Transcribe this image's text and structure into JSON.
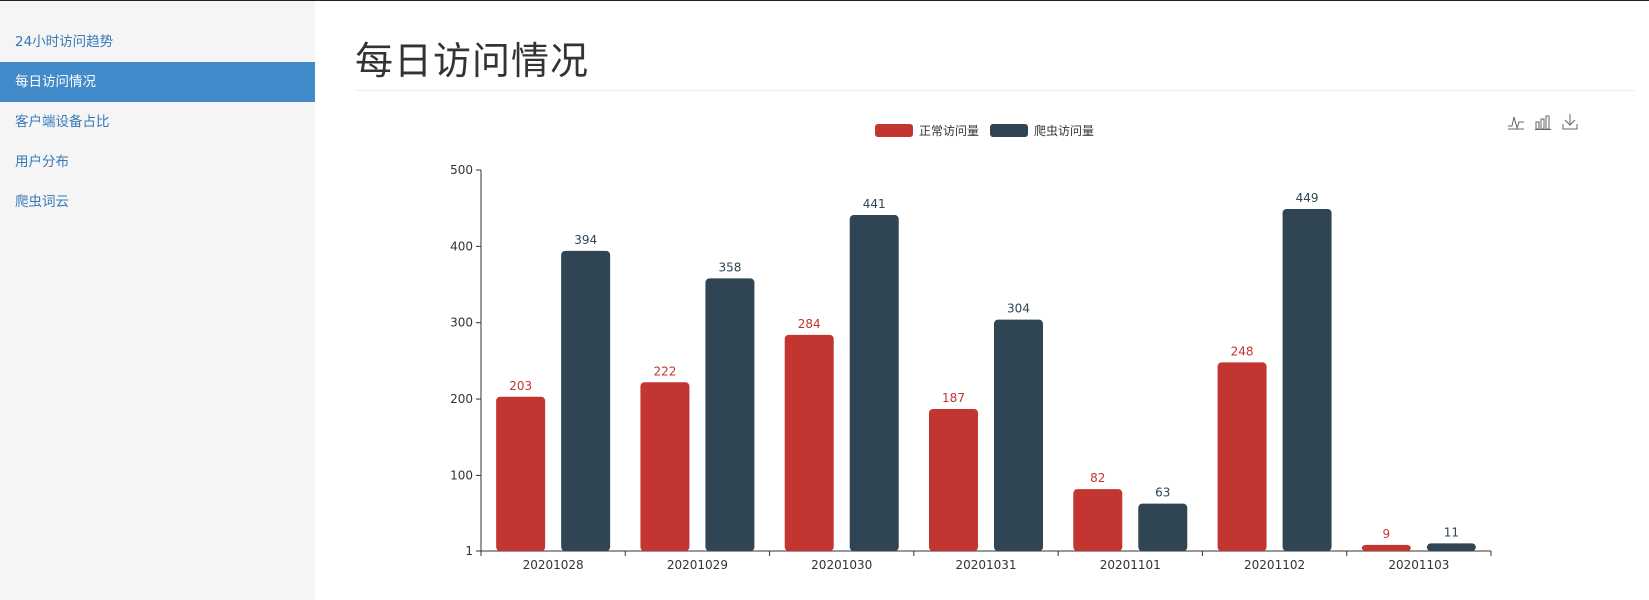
{
  "sidebar": {
    "items": [
      {
        "label": "24小时访问趋势",
        "active": false
      },
      {
        "label": "每日访问情况",
        "active": true
      },
      {
        "label": "客户端设备占比",
        "active": false
      },
      {
        "label": "用户分布",
        "active": false
      },
      {
        "label": "爬虫词云",
        "active": false
      }
    ]
  },
  "main": {
    "title": "每日访问情况"
  },
  "toolbox": {
    "icons": [
      "line-chart-icon",
      "bar-chart-icon",
      "download-icon"
    ]
  },
  "colors": {
    "series1": "#c23531",
    "series2": "#2f4554",
    "nav_active": "#428bca",
    "link": "#337ab7"
  },
  "chart_data": {
    "type": "bar",
    "categories": [
      "20201028",
      "20201029",
      "20201030",
      "20201031",
      "20201101",
      "20201102",
      "20201103"
    ],
    "series": [
      {
        "name": "正常访问量",
        "values": [
          203,
          222,
          284,
          187,
          82,
          248,
          9
        ]
      },
      {
        "name": "爬虫访问量",
        "values": [
          394,
          358,
          441,
          304,
          63,
          449,
          11
        ]
      }
    ],
    "yticks": [
      "1",
      "100",
      "200",
      "300",
      "400",
      "500"
    ],
    "ylim": [
      1,
      500
    ],
    "legend_position": "top-center",
    "data_labels": true
  }
}
